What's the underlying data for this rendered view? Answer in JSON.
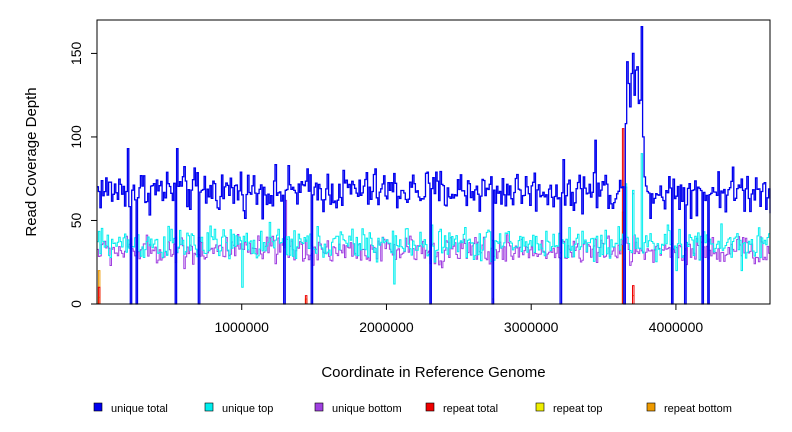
{
  "chart_data": {
    "type": "line",
    "title": "",
    "xlabel": "Coordinate in Reference Genome",
    "ylabel": "Read Coverage Depth",
    "xlim": [
      0,
      4650000
    ],
    "ylim": [
      0,
      170
    ],
    "x_ticks": [
      1000000,
      2000000,
      3000000,
      4000000
    ],
    "x_tick_labels": [
      "1000000",
      "2000000",
      "3000000",
      "4000000"
    ],
    "y_ticks": [
      0,
      50,
      100,
      150
    ],
    "y_tick_labels": [
      "0",
      "50",
      "100",
      "150"
    ],
    "grid": false,
    "legend_position": "bottom",
    "step_x": 10000,
    "series": [
      {
        "name": "unique total",
        "color": "#0000ee",
        "base": 68,
        "noise": 9,
        "features": [
          {
            "x": 3650000,
            "y": 108
          },
          {
            "x": 3660000,
            "y": 145
          },
          {
            "x": 3670000,
            "y": 132
          },
          {
            "x": 3680000,
            "y": 118
          },
          {
            "x": 3690000,
            "y": 138
          },
          {
            "x": 3700000,
            "y": 150
          },
          {
            "x": 3710000,
            "y": 125
          },
          {
            "x": 3720000,
            "y": 140
          },
          {
            "x": 3730000,
            "y": 142
          },
          {
            "x": 3740000,
            "y": 120
          },
          {
            "x": 3750000,
            "y": 122
          },
          {
            "x": 3760000,
            "y": 166
          },
          {
            "x": 3770000,
            "y": 100
          },
          {
            "x": 1500000,
            "y": 70
          },
          {
            "x": 210000,
            "y": 93
          },
          {
            "x": 550000,
            "y": 93
          },
          {
            "x": 3440000,
            "y": 98
          }
        ],
        "dropouts": [
          230000,
          270000,
          540000,
          700000,
          1290000,
          1480000,
          2300000,
          2730000,
          3200000,
          3440000,
          3640000,
          3970000,
          4060000,
          4180000,
          4220000
        ]
      },
      {
        "name": "unique top",
        "color": "#00eeee",
        "base": 36,
        "noise": 7,
        "features": [
          {
            "x": 1000000,
            "y": 10
          },
          {
            "x": 2050000,
            "y": 12
          },
          {
            "x": 3650000,
            "y": 72
          },
          {
            "x": 3700000,
            "y": 68
          },
          {
            "x": 3760000,
            "y": 90
          },
          {
            "x": 4000000,
            "y": 20
          },
          {
            "x": 4450000,
            "y": 20
          }
        ],
        "dropouts": []
      },
      {
        "name": "unique bottom",
        "color": "#a040e0",
        "base": 32,
        "noise": 6,
        "features": [
          {
            "x": 1300000,
            "y": 62
          },
          {
            "x": 3650000,
            "y": 70
          },
          {
            "x": 3700000,
            "y": 66
          }
        ],
        "dropouts": []
      },
      {
        "name": "repeat total",
        "color": "#ee0000",
        "base": 0,
        "noise": 0,
        "features": [
          {
            "x": 10000,
            "y": 10
          },
          {
            "x": 1440000,
            "y": 5
          },
          {
            "x": 3630000,
            "y": 105
          },
          {
            "x": 3700000,
            "y": 11
          }
        ],
        "dropouts": []
      },
      {
        "name": "repeat top",
        "color": "#eeee00",
        "base": 0,
        "noise": 0,
        "features": [
          {
            "x": 10000,
            "y": 4
          },
          {
            "x": 3630000,
            "y": 50
          }
        ],
        "dropouts": []
      },
      {
        "name": "repeat bottom",
        "color": "#ee9a00",
        "base": 0,
        "noise": 0,
        "features": [
          {
            "x": 10000,
            "y": 20
          },
          {
            "x": 1440000,
            "y": 3
          },
          {
            "x": 2730000,
            "y": 3
          },
          {
            "x": 3630000,
            "y": 55
          },
          {
            "x": 3700000,
            "y": 5
          }
        ],
        "dropouts": []
      }
    ]
  }
}
